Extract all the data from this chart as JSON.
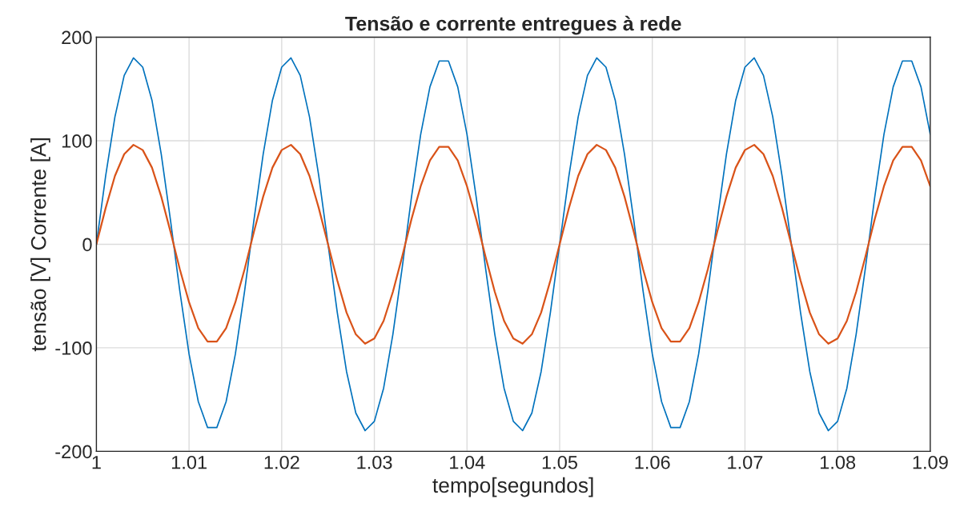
{
  "chart_data": {
    "type": "line",
    "title": "Tensão e corrente entregues à rede",
    "xlabel": "tempo[segundos]",
    "ylabel": "tensão [V] Corrente [A]",
    "x": [
      1,
      1.001,
      1.002,
      1.003,
      1.004,
      1.005,
      1.006,
      1.007,
      1.008,
      1.009,
      1.01,
      1.011,
      1.012,
      1.013,
      1.014,
      1.015,
      1.016,
      1.017,
      1.018,
      1.019,
      1.02,
      1.021,
      1.022,
      1.023,
      1.024,
      1.025,
      1.026,
      1.027,
      1.028,
      1.029,
      1.03,
      1.031,
      1.032,
      1.033,
      1.034,
      1.035,
      1.036,
      1.037,
      1.038,
      1.039,
      1.04,
      1.041,
      1.042,
      1.043,
      1.044,
      1.045,
      1.046,
      1.047,
      1.048,
      1.049,
      1.05,
      1.051,
      1.052,
      1.053,
      1.054,
      1.055,
      1.056,
      1.057,
      1.058,
      1.059,
      1.06,
      1.061,
      1.062,
      1.063,
      1.064,
      1.065,
      1.066,
      1.067,
      1.068,
      1.069,
      1.07,
      1.071,
      1.072,
      1.073,
      1.074,
      1.075,
      1.076,
      1.077,
      1.078,
      1.079,
      1.08,
      1.081,
      1.082,
      1.083,
      1.084,
      1.085,
      1.086,
      1.087,
      1.088,
      1.089,
      1.09
    ],
    "series": [
      {
        "color": "#0072bd",
        "values": [
          0,
          66,
          123,
          163,
          180,
          171,
          139,
          87,
          23,
          -45,
          -106,
          -152,
          -177,
          -177,
          -152,
          -106,
          -45,
          23,
          87,
          139,
          171,
          180,
          163,
          123,
          66,
          0,
          -66,
          -123,
          -163,
          -180,
          -171,
          -139,
          -87,
          -23,
          45,
          106,
          152,
          177,
          177,
          152,
          106,
          45,
          -23,
          -87,
          -139,
          -171,
          -180,
          -163,
          -123,
          -66,
          0,
          66,
          123,
          163,
          180,
          171,
          139,
          87,
          23,
          -45,
          -106,
          -152,
          -177,
          -177,
          -152,
          -106,
          -45,
          23,
          87,
          139,
          171,
          180,
          163,
          123,
          66,
          0,
          -66,
          -123,
          -163,
          -180,
          -171,
          -139,
          -87,
          -23,
          45,
          106,
          152,
          177,
          177,
          152,
          106
        ]
      },
      {
        "color": "#d95319",
        "values": [
          0,
          35,
          66,
          87,
          96,
          91,
          74,
          46,
          12,
          -24,
          -56,
          -81,
          -94,
          -94,
          -81,
          -56,
          -24,
          12,
          46,
          74,
          91,
          96,
          87,
          66,
          35,
          0,
          -35,
          -66,
          -87,
          -96,
          -91,
          -74,
          -46,
          -12,
          24,
          56,
          81,
          94,
          94,
          81,
          56,
          24,
          -12,
          -46,
          -74,
          -91,
          -96,
          -87,
          -66,
          -35,
          0,
          35,
          66,
          87,
          96,
          91,
          74,
          46,
          12,
          -24,
          -56,
          -81,
          -94,
          -94,
          -81,
          -56,
          -24,
          12,
          46,
          74,
          91,
          96,
          87,
          66,
          35,
          0,
          -35,
          -66,
          -87,
          -96,
          -91,
          -74,
          -46,
          -12,
          24,
          56,
          81,
          94,
          94,
          81,
          56
        ]
      }
    ],
    "xlim": [
      1,
      1.09
    ],
    "xticks": [
      1,
      1.01,
      1.02,
      1.03,
      1.04,
      1.05,
      1.06,
      1.07,
      1.08,
      1.09
    ],
    "ylim": [
      -200,
      200
    ],
    "yticks": [
      -200,
      -100,
      0,
      100,
      200
    ],
    "grid": true,
    "line_style": "solid"
  }
}
